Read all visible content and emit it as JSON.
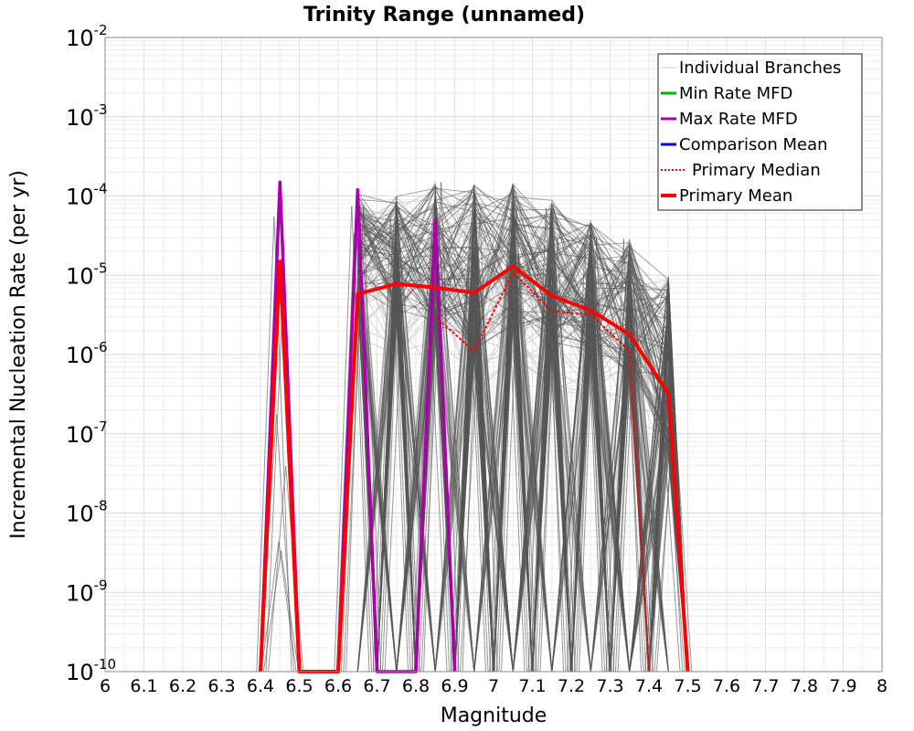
{
  "chart_data": {
    "type": "line",
    "title": "Trinity Range (unnamed)",
    "xlabel": "Magnitude",
    "ylabel": "Incremental Nucleation Rate (per yr)",
    "x_scale": "linear",
    "y_scale": "log",
    "xlim": [
      6,
      8
    ],
    "ylim": [
      1e-10,
      0.01
    ],
    "grid": true,
    "legend_position": "top-right",
    "x_ticks": [
      "6",
      "6.1",
      "6.2",
      "6.3",
      "6.4",
      "6.5",
      "6.6",
      "6.7",
      "6.8",
      "6.9",
      "7",
      "7.1",
      "7.2",
      "7.3",
      "7.4",
      "7.5",
      "7.6",
      "7.7",
      "7.8",
      "7.9",
      "8"
    ],
    "y_ticks": [
      {
        "base": "10",
        "exp": "-10"
      },
      {
        "base": "10",
        "exp": "-9"
      },
      {
        "base": "10",
        "exp": "-8"
      },
      {
        "base": "10",
        "exp": "-7"
      },
      {
        "base": "10",
        "exp": "-6"
      },
      {
        "base": "10",
        "exp": "-5"
      },
      {
        "base": "10",
        "exp": "-4"
      },
      {
        "base": "10",
        "exp": "-3"
      },
      {
        "base": "10",
        "exp": "-2"
      }
    ],
    "legend": [
      {
        "label": "Individual Branches",
        "color": "#c8c8c8",
        "style": "thin"
      },
      {
        "label": "Min Rate MFD",
        "color": "#00b400",
        "style": "solid"
      },
      {
        "label": "Max Rate MFD",
        "color": "#aa00aa",
        "style": "solid"
      },
      {
        "label": "Comparison Mean",
        "color": "#0000ff",
        "style": "solid"
      },
      {
        "label": "Primary Median",
        "color": "#ff0000",
        "style": "dotted"
      },
      {
        "label": "Primary Mean",
        "color": "#ff0000",
        "style": "thick"
      }
    ],
    "series": [
      {
        "name": "Max Rate MFD",
        "color": "#aa00aa",
        "points": [
          [
            6.4,
            1e-10
          ],
          [
            6.45,
            0.00015
          ],
          [
            6.5,
            1e-10
          ],
          [
            6.6,
            1e-10
          ],
          [
            6.65,
            0.00012
          ],
          [
            6.7,
            1e-10
          ],
          [
            6.8,
            1e-10
          ],
          [
            6.85,
            5e-05
          ],
          [
            6.9,
            1e-10
          ]
        ]
      },
      {
        "name": "Primary Median",
        "color": "#ff0000",
        "points": [
          [
            6.85,
            3e-06
          ],
          [
            6.95,
            1.1e-06
          ],
          [
            7.05,
            1.1e-05
          ],
          [
            7.15,
            3.5e-06
          ],
          [
            7.25,
            3.2e-06
          ],
          [
            7.35,
            1.1e-06
          ],
          [
            7.4,
            1e-10
          ]
        ]
      },
      {
        "name": "Primary Mean",
        "color": "#ff0000",
        "points": [
          [
            6.4,
            1e-10
          ],
          [
            6.45,
            1.5e-05
          ],
          [
            6.5,
            1e-10
          ],
          [
            6.6,
            1e-10
          ],
          [
            6.65,
            5.8e-06
          ],
          [
            6.75,
            7.8e-06
          ],
          [
            6.85,
            7e-06
          ],
          [
            6.95,
            6e-06
          ],
          [
            7.05,
            1.3e-05
          ],
          [
            7.15,
            5.5e-06
          ],
          [
            7.25,
            3.6e-06
          ],
          [
            7.35,
            1.8e-06
          ],
          [
            7.45,
            3.2e-07
          ],
          [
            7.5,
            1e-10
          ]
        ]
      }
    ],
    "branch_band": {
      "name": "Individual Branches",
      "color": "#555555",
      "light_color": "#c8c8c8",
      "peaks": [
        {
          "x": 6.45,
          "upper": 0.00015,
          "lower": 1e-10
        },
        {
          "x": 6.65,
          "upper": 0.00012,
          "lower": 5e-06
        },
        {
          "x": 6.75,
          "upper": 0.0001,
          "lower": 3e-06
        },
        {
          "x": 6.85,
          "upper": 0.00015,
          "lower": 2e-06
        },
        {
          "x": 6.95,
          "upper": 0.00014,
          "lower": 1e-06
        },
        {
          "x": 7.05,
          "upper": 0.00015,
          "lower": 2e-06
        },
        {
          "x": 7.15,
          "upper": 9e-05,
          "lower": 1e-06
        },
        {
          "x": 7.25,
          "upper": 5e-05,
          "lower": 1e-06
        },
        {
          "x": 7.35,
          "upper": 3e-05,
          "lower": 5e-07
        },
        {
          "x": 7.45,
          "upper": 1e-05,
          "lower": 5e-08
        }
      ]
    }
  }
}
